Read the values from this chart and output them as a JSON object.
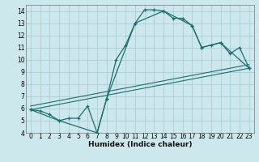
{
  "xlabel": "Humidex (Indice chaleur)",
  "bg_color": "#cce8ec",
  "grid_color": "#aacdd4",
  "line_color": "#1e6e6e",
  "xlim": [
    -0.5,
    23.5
  ],
  "ylim": [
    4,
    14.5
  ],
  "xticks": [
    0,
    1,
    2,
    3,
    4,
    5,
    6,
    7,
    8,
    9,
    10,
    11,
    12,
    13,
    14,
    15,
    16,
    17,
    18,
    19,
    20,
    21,
    22,
    23
  ],
  "yticks": [
    4,
    5,
    6,
    7,
    8,
    9,
    10,
    11,
    12,
    13,
    14
  ],
  "curve_x": [
    0,
    1,
    2,
    3,
    4,
    5,
    6,
    7,
    8,
    9,
    10,
    11,
    12,
    13,
    14,
    15,
    16,
    17,
    18,
    19,
    20,
    21,
    22,
    23
  ],
  "curve_y": [
    5.9,
    5.8,
    5.5,
    5.0,
    5.2,
    5.2,
    6.2,
    4.0,
    6.8,
    10.0,
    11.2,
    13.0,
    14.1,
    14.1,
    14.0,
    13.4,
    13.4,
    12.8,
    11.0,
    11.2,
    11.4,
    10.5,
    11.0,
    9.3
  ],
  "trend1_x": [
    0,
    23
  ],
  "trend1_y": [
    5.9,
    9.3
  ],
  "trend2_x": [
    0,
    23
  ],
  "trend2_y": [
    6.2,
    9.6
  ],
  "secondary_x": [
    0,
    3,
    7,
    8,
    11,
    14,
    17,
    18,
    20,
    23
  ],
  "secondary_y": [
    5.9,
    5.0,
    4.0,
    6.8,
    13.0,
    14.0,
    12.8,
    11.0,
    11.4,
    9.3
  ]
}
